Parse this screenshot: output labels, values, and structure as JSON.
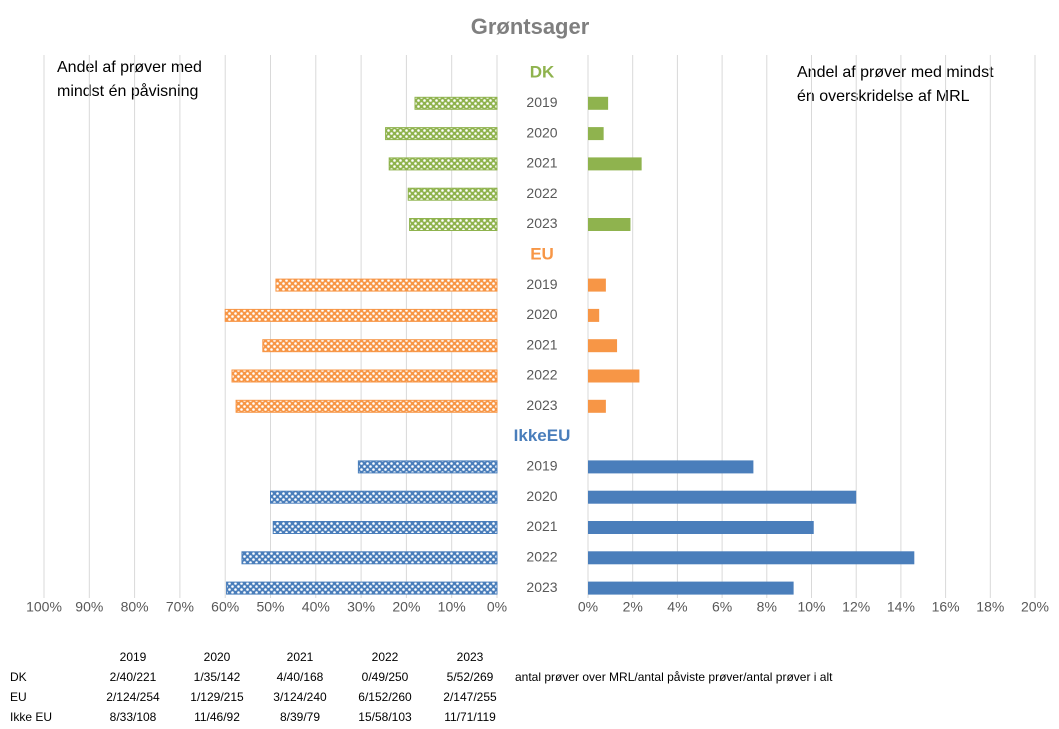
{
  "chart_data": {
    "type": "butterfly",
    "title": "Grøntsager",
    "left_axis_label": [
      "Andel af prøver med",
      "mindst én påvisning"
    ],
    "right_axis_label": [
      "Andel af prøver med mindst",
      "én overskridelse af MRL"
    ],
    "groups": [
      {
        "name": "DK",
        "color": "#8fb34e",
        "categories": [
          "2019",
          "2020",
          "2021",
          "2022",
          "2023"
        ],
        "left_values": [
          18.1,
          24.6,
          23.8,
          19.6,
          19.3
        ],
        "right_values": [
          0.9,
          0.7,
          2.4,
          0,
          1.9
        ]
      },
      {
        "name": "EU",
        "color": "#f79646",
        "categories": [
          "2019",
          "2020",
          "2021",
          "2022",
          "2023"
        ],
        "left_values": [
          48.8,
          60.0,
          51.7,
          58.5,
          57.6
        ],
        "right_values": [
          0.8,
          0.5,
          1.3,
          2.3,
          0.8
        ]
      },
      {
        "name": "IkkeEU",
        "color": "#4a7ebb",
        "categories": [
          "2019",
          "2020",
          "2021",
          "2022",
          "2023"
        ],
        "left_values": [
          30.6,
          50.0,
          49.4,
          56.3,
          59.7
        ],
        "right_values": [
          7.4,
          12.0,
          10.1,
          14.6,
          9.2
        ]
      }
    ],
    "left_xlim": [
      100,
      0
    ],
    "left_xticks": [
      {
        "value": 100,
        "label": "100%"
      },
      {
        "value": 90,
        "label": "90%"
      },
      {
        "value": 80,
        "label": "80%"
      },
      {
        "value": 70,
        "label": "70%"
      },
      {
        "value": 60,
        "label": "60%"
      },
      {
        "value": 50,
        "label": "50%"
      },
      {
        "value": 40,
        "label": "40%"
      },
      {
        "value": 30,
        "label": "30%"
      },
      {
        "value": 20,
        "label": "20%"
      },
      {
        "value": 10,
        "label": "10%"
      },
      {
        "value": 0,
        "label": "0%"
      }
    ],
    "right_xlim": [
      0,
      20
    ],
    "right_xticks": [
      {
        "value": 0,
        "label": "0%"
      },
      {
        "value": 2,
        "label": "2%"
      },
      {
        "value": 4,
        "label": "4%"
      },
      {
        "value": 6,
        "label": "6%"
      },
      {
        "value": 8,
        "label": "8%"
      },
      {
        "value": 10,
        "label": "10%"
      },
      {
        "value": 12,
        "label": "12%"
      },
      {
        "value": 14,
        "label": "14%"
      },
      {
        "value": 16,
        "label": "16%"
      },
      {
        "value": 18,
        "label": "18%"
      },
      {
        "value": 20,
        "label": "20%"
      }
    ],
    "grid": true
  },
  "table": {
    "header": [
      "2019",
      "2020",
      "2021",
      "2022",
      "2023"
    ],
    "rows": [
      {
        "label": "DK",
        "cells": [
          "2/40/221",
          "1/35/142",
          "4/40/168",
          "0/49/250",
          "5/52/269"
        ]
      },
      {
        "label": "EU",
        "cells": [
          "2/124/254",
          "1/129/215",
          "3/124/240",
          "6/152/260",
          "2/147/255"
        ]
      },
      {
        "label": "Ikke EU",
        "cells": [
          "8/33/108",
          "11/46/92",
          "8/39/79",
          "15/58/103",
          "11/71/119"
        ]
      }
    ],
    "note": "antal prøver over MRL/antal påviste prøver/antal prøver i alt"
  }
}
